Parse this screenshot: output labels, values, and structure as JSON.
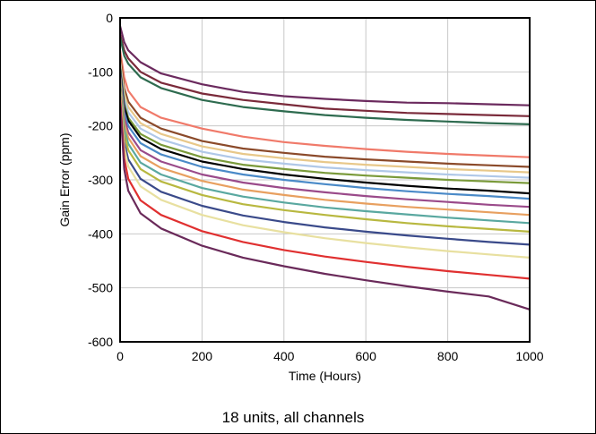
{
  "chart_data": {
    "type": "line",
    "title": "",
    "caption": "18 units, all channels",
    "xlabel": "Time (Hours)",
    "ylabel": "Gain Error (ppm)",
    "xlim": [
      0,
      1000
    ],
    "ylim": [
      -600,
      0
    ],
    "xticks": [
      0,
      200,
      400,
      600,
      800,
      1000
    ],
    "yticks": [
      0,
      -100,
      -200,
      -300,
      -400,
      -500,
      -600
    ],
    "grid": true,
    "legend": "none",
    "series": [
      {
        "color": "#6b2a5e",
        "x": [
          0,
          10,
          20,
          50,
          100,
          200,
          300,
          400,
          500,
          600,
          700,
          800,
          900,
          1000
        ],
        "y": [
          -15,
          -45,
          -60,
          -82,
          -103,
          -123,
          -137,
          -145,
          -150,
          -154,
          -157,
          -158,
          -160,
          -162
        ]
      },
      {
        "color": "#7a2a3a",
        "x": [
          0,
          10,
          20,
          50,
          100,
          200,
          300,
          400,
          500,
          600,
          700,
          800,
          900,
          1000
        ],
        "y": [
          -30,
          -60,
          -75,
          -100,
          -120,
          -140,
          -152,
          -160,
          -168,
          -172,
          -176,
          -178,
          -180,
          -182
        ]
      },
      {
        "color": "#2e6b4f",
        "x": [
          0,
          10,
          20,
          50,
          100,
          200,
          300,
          400,
          500,
          600,
          700,
          800,
          900,
          1000
        ],
        "y": [
          -35,
          -70,
          -85,
          -110,
          -130,
          -152,
          -165,
          -173,
          -180,
          -185,
          -189,
          -192,
          -195,
          -197
        ]
      },
      {
        "color": "#f07a6a",
        "x": [
          0,
          10,
          20,
          50,
          100,
          200,
          300,
          400,
          500,
          600,
          700,
          800,
          900,
          1000
        ],
        "y": [
          -60,
          -110,
          -135,
          -165,
          -185,
          -205,
          -220,
          -230,
          -237,
          -243,
          -248,
          -252,
          -255,
          -258
        ]
      },
      {
        "color": "#8b4a2a",
        "x": [
          0,
          10,
          20,
          50,
          100,
          200,
          300,
          400,
          500,
          600,
          700,
          800,
          900,
          1000
        ],
        "y": [
          -70,
          -130,
          -155,
          -185,
          -205,
          -228,
          -242,
          -250,
          -257,
          -262,
          -266,
          -270,
          -273,
          -276
        ]
      },
      {
        "color": "#e8c88a",
        "x": [
          0,
          10,
          20,
          50,
          100,
          200,
          300,
          400,
          500,
          600,
          700,
          800,
          900,
          1000
        ],
        "y": [
          -80,
          -140,
          -165,
          -195,
          -215,
          -238,
          -252,
          -260,
          -267,
          -272,
          -276,
          -280,
          -283,
          -286
        ]
      },
      {
        "color": "#b0c8e8",
        "x": [
          0,
          10,
          20,
          50,
          100,
          200,
          300,
          400,
          500,
          600,
          700,
          800,
          900,
          1000
        ],
        "y": [
          -85,
          -150,
          -175,
          -205,
          -225,
          -248,
          -262,
          -270,
          -277,
          -282,
          -286,
          -290,
          -293,
          -296
        ]
      },
      {
        "color": "#7a9a3a",
        "x": [
          0,
          10,
          20,
          50,
          100,
          200,
          300,
          400,
          500,
          600,
          700,
          800,
          900,
          1000
        ],
        "y": [
          -90,
          -160,
          -185,
          -215,
          -235,
          -258,
          -272,
          -280,
          -287,
          -292,
          -296,
          -300,
          -303,
          -306
        ]
      },
      {
        "color": "#000000",
        "x": [
          0,
          10,
          20,
          50,
          100,
          200,
          300,
          400,
          500,
          600,
          700,
          800,
          900,
          1000
        ],
        "y": [
          -95,
          -165,
          -190,
          -222,
          -243,
          -266,
          -280,
          -290,
          -298,
          -305,
          -311,
          -316,
          -320,
          -325
        ]
      },
      {
        "color": "#4a8ac8",
        "x": [
          0,
          10,
          20,
          50,
          100,
          200,
          300,
          400,
          500,
          600,
          700,
          800,
          900,
          1000
        ],
        "y": [
          -100,
          -175,
          -200,
          -232,
          -253,
          -276,
          -290,
          -300,
          -308,
          -315,
          -321,
          -326,
          -330,
          -335
        ]
      },
      {
        "color": "#9a4a8a",
        "x": [
          0,
          10,
          20,
          50,
          100,
          200,
          300,
          400,
          500,
          600,
          700,
          800,
          900,
          1000
        ],
        "y": [
          -105,
          -185,
          -212,
          -245,
          -266,
          -290,
          -305,
          -315,
          -323,
          -330,
          -336,
          -341,
          -346,
          -350
        ]
      },
      {
        "color": "#e8a060",
        "x": [
          0,
          10,
          20,
          50,
          100,
          200,
          300,
          400,
          500,
          600,
          700,
          800,
          900,
          1000
        ],
        "y": [
          -110,
          -195,
          -222,
          -256,
          -278,
          -302,
          -318,
          -328,
          -337,
          -344,
          -350,
          -355,
          -360,
          -365
        ]
      },
      {
        "color": "#5aa8a0",
        "x": [
          0,
          10,
          20,
          50,
          100,
          200,
          300,
          400,
          500,
          600,
          700,
          800,
          900,
          1000
        ],
        "y": [
          -115,
          -205,
          -233,
          -268,
          -290,
          -315,
          -331,
          -342,
          -351,
          -358,
          -364,
          -370,
          -375,
          -380
        ]
      },
      {
        "color": "#b8b840",
        "x": [
          0,
          10,
          20,
          50,
          100,
          200,
          300,
          400,
          500,
          600,
          700,
          800,
          900,
          1000
        ],
        "y": [
          -120,
          -215,
          -245,
          -280,
          -303,
          -328,
          -345,
          -356,
          -365,
          -373,
          -380,
          -386,
          -391,
          -396
        ]
      },
      {
        "color": "#3a4a8a",
        "x": [
          0,
          10,
          20,
          50,
          100,
          200,
          300,
          400,
          500,
          600,
          700,
          800,
          900,
          1000
        ],
        "y": [
          -130,
          -230,
          -262,
          -298,
          -322,
          -348,
          -366,
          -378,
          -388,
          -396,
          -403,
          -409,
          -415,
          -420
        ]
      },
      {
        "color": "#e8e0a0",
        "x": [
          0,
          10,
          20,
          50,
          100,
          200,
          300,
          400,
          500,
          600,
          700,
          800,
          900,
          1000
        ],
        "y": [
          -135,
          -240,
          -275,
          -312,
          -337,
          -365,
          -384,
          -397,
          -408,
          -417,
          -425,
          -432,
          -438,
          -444
        ]
      },
      {
        "color": "#e03030",
        "x": [
          0,
          10,
          20,
          50,
          100,
          200,
          300,
          400,
          500,
          600,
          700,
          800,
          900,
          1000
        ],
        "y": [
          -145,
          -260,
          -298,
          -338,
          -365,
          -395,
          -415,
          -430,
          -442,
          -452,
          -461,
          -469,
          -476,
          -483
        ]
      },
      {
        "color": "#6a2a5a",
        "x": [
          0,
          10,
          20,
          50,
          100,
          200,
          300,
          400,
          500,
          600,
          700,
          800,
          900,
          1000
        ],
        "y": [
          -155,
          -280,
          -320,
          -362,
          -390,
          -422,
          -444,
          -460,
          -474,
          -486,
          -497,
          -507,
          -516,
          -540
        ]
      }
    ]
  }
}
